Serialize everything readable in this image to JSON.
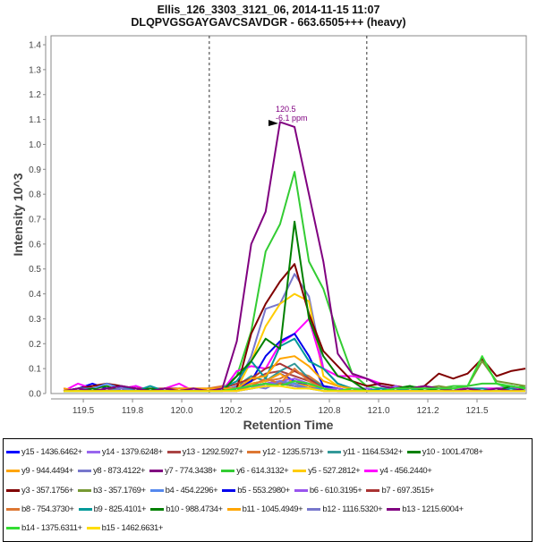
{
  "header": {
    "title_line1": "Ellis_126_3303_3121_06, 2014-11-15 11:07",
    "title_line2": "DLQPVGSGAYGAVCSAVDGR - 663.6505+++ (heavy)"
  },
  "chart_data": {
    "type": "line",
    "xlabel": "Retention Time",
    "ylabel": "Intensity 10^3",
    "xlim": [
      119.336,
      121.75
    ],
    "ylim": [
      0,
      1.436
    ],
    "x_ticks": [
      119.5,
      119.75,
      120.0,
      120.25,
      120.5,
      120.75,
      121.0,
      121.25,
      121.5
    ],
    "x_tick_labels": [
      "119.5",
      "119.8",
      "120.0",
      "120.2",
      "120.5",
      "120.8",
      "121.0",
      "121.2",
      "121.5"
    ],
    "y_ticks": [
      0,
      0.1,
      0.2,
      0.3,
      0.4,
      0.5,
      0.6,
      0.7,
      0.8,
      0.9,
      1.0,
      1.1,
      1.2,
      1.3,
      1.4
    ],
    "y_tick_labels": [
      "0.0",
      "0.1",
      "0.2",
      "0.3",
      "0.4",
      "0.5",
      "0.6",
      "0.7",
      "0.8",
      "0.9",
      "1.0",
      "1.1",
      "1.2",
      "1.3",
      "1.4"
    ],
    "integration_bounds": [
      120.14,
      120.94
    ],
    "annotation": {
      "x": 120.5,
      "y": 1.09,
      "line1": "120.5",
      "line2": "-6.1 ppm",
      "color": "#800080"
    },
    "x_start": 119.4,
    "x_step": 0.0733,
    "legend_position": "bottom",
    "series": [
      {
        "name": "y15 - 1436.6462+",
        "color": "#0000ff",
        "values": [
          0.01,
          0.02,
          0.04,
          0.02,
          0.01,
          0.03,
          0.01,
          0.01,
          0.02,
          0.01,
          0.01,
          0.01,
          0.02,
          0.04,
          0.05,
          0.08,
          0.05,
          0.03,
          0.02,
          0.01,
          0.01,
          0.02,
          0.01,
          0.01,
          0.01,
          0.01,
          0.01,
          0.01,
          0.01,
          0.01,
          0.01,
          0.01,
          0.01
        ]
      },
      {
        "name": "y14 - 1379.6248+",
        "color": "#9966ee",
        "values": [
          0.01,
          0.01,
          0.01,
          0.02,
          0.01,
          0.01,
          0.01,
          0.01,
          0.01,
          0.01,
          0.01,
          0.02,
          0.01,
          0.02,
          0.03,
          0.04,
          0.05,
          0.04,
          0.02,
          0.01,
          0.02,
          0.01,
          0.02,
          0.01,
          0.03,
          0.01,
          0.02,
          0.01,
          0.01,
          0.01,
          0.01,
          0.02,
          0.02
        ]
      },
      {
        "name": "y13 - 1292.5927+",
        "color": "#aa4444",
        "values": [
          0.01,
          0.01,
          0.02,
          0.01,
          0.02,
          0.02,
          0.01,
          0.02,
          0.01,
          0.01,
          0.01,
          0.01,
          0.03,
          0.05,
          0.08,
          0.09,
          0.07,
          0.05,
          0.03,
          0.01,
          0.01,
          0.01,
          0.01,
          0.01,
          0.01,
          0.01,
          0.01,
          0.01,
          0.01,
          0.01,
          0.01,
          0.01,
          0.01
        ]
      },
      {
        "name": "y12 - 1235.5713+",
        "color": "#dd7733",
        "values": [
          0.01,
          0.01,
          0.01,
          0.01,
          0.01,
          0.01,
          0.01,
          0.01,
          0.01,
          0.01,
          0.02,
          0.03,
          0.01,
          0.04,
          0.05,
          0.06,
          0.09,
          0.07,
          0.03,
          0.02,
          0.01,
          0.01,
          0.01,
          0.01,
          0.01,
          0.01,
          0.01,
          0.01,
          0.01,
          0.01,
          0.01,
          0.01,
          0.01
        ]
      },
      {
        "name": "y11 - 1164.5342+",
        "color": "#339999",
        "values": [
          0.01,
          0.02,
          0.01,
          0.01,
          0.01,
          0.02,
          0.01,
          0.01,
          0.01,
          0.01,
          0.01,
          0.01,
          0.03,
          0.07,
          0.05,
          0.09,
          0.12,
          0.06,
          0.03,
          0.02,
          0.01,
          0.01,
          0.01,
          0.01,
          0.01,
          0.01,
          0.01,
          0.01,
          0.01,
          0.01,
          0.01,
          0.01,
          0.01
        ]
      },
      {
        "name": "y10 - 1001.4708+",
        "color": "#008000",
        "values": [
          0.01,
          0.01,
          0.02,
          0.03,
          0.01,
          0.02,
          0.01,
          0.01,
          0.01,
          0.01,
          0.01,
          0.01,
          0.02,
          0.03,
          0.04,
          0.05,
          0.04,
          0.03,
          0.02,
          0.01,
          0.01,
          0.01,
          0.01,
          0.01,
          0.02,
          0.01,
          0.01,
          0.02,
          0.01,
          0.01,
          0.01,
          0.01,
          0.01
        ]
      },
      {
        "name": "y9 - 944.4494+",
        "color": "#ffa500",
        "values": [
          0.02,
          0.01,
          0.01,
          0.01,
          0.01,
          0.01,
          0.01,
          0.01,
          0.01,
          0.01,
          0.01,
          0.02,
          0.02,
          0.04,
          0.05,
          0.08,
          0.04,
          0.03,
          0.02,
          0.01,
          0.01,
          0.01,
          0.01,
          0.01,
          0.01,
          0.01,
          0.01,
          0.01,
          0.01,
          0.01,
          0.01,
          0.01,
          0.02
        ]
      },
      {
        "name": "y8 - 873.4122+",
        "color": "#7777cc",
        "values": [
          0.02,
          0.01,
          0.02,
          0.01,
          0.02,
          0.01,
          0.01,
          0.02,
          0.01,
          0.01,
          0.02,
          0.01,
          0.03,
          0.15,
          0.34,
          0.36,
          0.48,
          0.39,
          0.1,
          0.04,
          0.02,
          0.02,
          0.01,
          0.02,
          0.01,
          0.02,
          0.01,
          0.02,
          0.01,
          0.02,
          0.02,
          0.03,
          0.02
        ]
      },
      {
        "name": "y7 - 774.3438+",
        "color": "#800080",
        "values": [
          0.01,
          0.01,
          0.01,
          0.01,
          0.02,
          0.01,
          0.01,
          0.01,
          0.01,
          0.01,
          0.01,
          0.01,
          0.02,
          0.03,
          0.04,
          0.04,
          0.03,
          0.02,
          0.02,
          0.01,
          0.01,
          0.01,
          0.01,
          0.01,
          0.01,
          0.01,
          0.01,
          0.01,
          0.01,
          0.01,
          0.01,
          0.01,
          0.01
        ]
      },
      {
        "name": "y6 - 614.3132+",
        "color": "#33cc33",
        "values": [
          0.01,
          0.01,
          0.02,
          0.01,
          0.01,
          0.02,
          0.01,
          0.01,
          0.02,
          0.01,
          0.01,
          0.02,
          0.07,
          0.25,
          0.57,
          0.68,
          0.89,
          0.53,
          0.42,
          0.24,
          0.08,
          0.03,
          0.02,
          0.02,
          0.03,
          0.02,
          0.02,
          0.03,
          0.03,
          0.04,
          0.04,
          0.02,
          0.03
        ]
      },
      {
        "name": "y5 - 527.2812+",
        "color": "#ffcc00",
        "values": [
          0.01,
          0.01,
          0.01,
          0.01,
          0.01,
          0.01,
          0.01,
          0.01,
          0.01,
          0.01,
          0.01,
          0.01,
          0.02,
          0.13,
          0.27,
          0.36,
          0.4,
          0.37,
          0.07,
          0.03,
          0.02,
          0.01,
          0.01,
          0.01,
          0.01,
          0.01,
          0.01,
          0.01,
          0.01,
          0.01,
          0.01,
          0.01,
          0.01
        ]
      },
      {
        "name": "y4 - 456.2440+",
        "color": "#ff00ff",
        "values": [
          0.01,
          0.04,
          0.02,
          0.01,
          0.02,
          0.03,
          0.01,
          0.02,
          0.04,
          0.01,
          0.02,
          0.01,
          0.09,
          0.11,
          0.1,
          0.2,
          0.24,
          0.3,
          0.1,
          0.07,
          0.07,
          0.06,
          0.04,
          0.03,
          0.02,
          0.02,
          0.02,
          0.02,
          0.02,
          0.02,
          0.02,
          0.02,
          0.02
        ]
      },
      {
        "name": "y3 - 357.1756+",
        "color": "#800000",
        "values": [
          0.01,
          0.02,
          0.03,
          0.04,
          0.03,
          0.02,
          0.01,
          0.02,
          0.01,
          0.01,
          0.02,
          0.02,
          0.02,
          0.24,
          0.36,
          0.45,
          0.52,
          0.32,
          0.17,
          0.11,
          0.05,
          0.03,
          0.04,
          0.03,
          0.02,
          0.03,
          0.08,
          0.06,
          0.08,
          0.14,
          0.07,
          0.09,
          0.1
        ]
      },
      {
        "name": "b3 - 357.1769+",
        "color": "#779933",
        "values": [
          0.01,
          0.01,
          0.01,
          0.01,
          0.01,
          0.01,
          0.01,
          0.01,
          0.01,
          0.01,
          0.01,
          0.01,
          0.02,
          0.03,
          0.03,
          0.04,
          0.03,
          0.02,
          0.02,
          0.01,
          0.01,
          0.01,
          0.01,
          0.01,
          0.02,
          0.02,
          0.03,
          0.02,
          0.03,
          0.13,
          0.05,
          0.04,
          0.03
        ]
      },
      {
        "name": "b4 - 454.2296+",
        "color": "#5588ee",
        "values": [
          0.01,
          0.02,
          0.02,
          0.04,
          0.02,
          0.01,
          0.02,
          0.01,
          0.02,
          0.02,
          0.01,
          0.01,
          0.01,
          0.02,
          0.03,
          0.05,
          0.04,
          0.02,
          0.02,
          0.01,
          0.01,
          0.01,
          0.02,
          0.01,
          0.01,
          0.01,
          0.01,
          0.01,
          0.01,
          0.01,
          0.01,
          0.01,
          0.01
        ]
      },
      {
        "name": "b5 - 553.2980+",
        "color": "#0000ee",
        "values": [
          0.01,
          0.01,
          0.01,
          0.01,
          0.02,
          0.01,
          0.01,
          0.01,
          0.01,
          0.01,
          0.01,
          0.01,
          0.02,
          0.05,
          0.15,
          0.21,
          0.24,
          0.15,
          0.03,
          0.02,
          0.01,
          0.02,
          0.01,
          0.01,
          0.01,
          0.01,
          0.01,
          0.01,
          0.01,
          0.01,
          0.01,
          0.01,
          0.01
        ]
      },
      {
        "name": "b6 - 610.3195+",
        "color": "#9955ee",
        "values": [
          0.01,
          0.01,
          0.01,
          0.01,
          0.01,
          0.01,
          0.01,
          0.01,
          0.01,
          0.01,
          0.01,
          0.01,
          0.01,
          0.02,
          0.04,
          0.05,
          0.06,
          0.04,
          0.02,
          0.02,
          0.01,
          0.02,
          0.01,
          0.03,
          0.01,
          0.01,
          0.01,
          0.01,
          0.01,
          0.01,
          0.01,
          0.01,
          0.01
        ]
      },
      {
        "name": "b7 - 697.3515+",
        "color": "#aa3333",
        "values": [
          0.01,
          0.01,
          0.01,
          0.02,
          0.01,
          0.02,
          0.02,
          0.02,
          0.02,
          0.02,
          0.02,
          0.02,
          0.04,
          0.06,
          0.1,
          0.12,
          0.09,
          0.06,
          0.02,
          0.01,
          0.01,
          0.01,
          0.01,
          0.01,
          0.01,
          0.01,
          0.01,
          0.01,
          0.01,
          0.01,
          0.01,
          0.01,
          0.01
        ]
      },
      {
        "name": "b8 - 754.3730+",
        "color": "#dd7733",
        "values": [
          0.01,
          0.01,
          0.01,
          0.01,
          0.01,
          0.01,
          0.01,
          0.01,
          0.01,
          0.01,
          0.02,
          0.02,
          0.01,
          0.03,
          0.06,
          0.04,
          0.1,
          0.05,
          0.02,
          0.01,
          0.01,
          0.01,
          0.01,
          0.01,
          0.01,
          0.01,
          0.01,
          0.01,
          0.01,
          0.01,
          0.01,
          0.01,
          0.01
        ]
      },
      {
        "name": "b9 - 825.4101+",
        "color": "#009999",
        "values": [
          0.01,
          0.02,
          0.01,
          0.02,
          0.03,
          0.01,
          0.03,
          0.01,
          0.01,
          0.01,
          0.01,
          0.02,
          0.05,
          0.13,
          0.06,
          0.19,
          0.22,
          0.13,
          0.1,
          0.04,
          0.02,
          0.01,
          0.02,
          0.01,
          0.02,
          0.01,
          0.01,
          0.01,
          0.02,
          0.02,
          0.01,
          0.02,
          0.01
        ]
      },
      {
        "name": "b10 - 988.4734+",
        "color": "#008000",
        "values": [
          0.01,
          0.01,
          0.02,
          0.01,
          0.01,
          0.01,
          0.02,
          0.01,
          0.01,
          0.01,
          0.01,
          0.01,
          0.07,
          0.13,
          0.22,
          0.18,
          0.69,
          0.3,
          0.15,
          0.07,
          0.05,
          0.01,
          0.01,
          0.02,
          0.03,
          0.01,
          0.02,
          0.01,
          0.02,
          0.01,
          0.01,
          0.03,
          0.02
        ]
      },
      {
        "name": "b11 - 1045.4949+",
        "color": "#ffa500",
        "values": [
          0.02,
          0.01,
          0.01,
          0.01,
          0.01,
          0.01,
          0.01,
          0.01,
          0.02,
          0.02,
          0.02,
          0.02,
          0.02,
          0.06,
          0.07,
          0.14,
          0.15,
          0.11,
          0.05,
          0.03,
          0.02,
          0.01,
          0.01,
          0.01,
          0.01,
          0.01,
          0.01,
          0.01,
          0.01,
          0.01,
          0.01,
          0.01,
          0.02
        ]
      },
      {
        "name": "b12 - 1116.5320+",
        "color": "#7777cc",
        "values": [
          0.01,
          0.01,
          0.01,
          0.01,
          0.02,
          0.01,
          0.01,
          0.01,
          0.01,
          0.01,
          0.01,
          0.01,
          0.02,
          0.03,
          0.02,
          0.05,
          0.03,
          0.02,
          0.01,
          0.01,
          0.01,
          0.01,
          0.01,
          0.01,
          0.01,
          0.01,
          0.01,
          0.01,
          0.01,
          0.01,
          0.01,
          0.01,
          0.01
        ]
      },
      {
        "name": "b13 - 1215.6004+",
        "color": "#800080",
        "values": [
          0.01,
          0.02,
          0.01,
          0.02,
          0.03,
          0.02,
          0.01,
          0.02,
          0.01,
          0.02,
          0.01,
          0.02,
          0.21,
          0.6,
          0.73,
          1.09,
          1.07,
          0.8,
          0.53,
          0.16,
          0.08,
          0.06,
          0.03,
          0.02,
          0.02,
          0.03,
          0.02,
          0.01,
          0.02,
          0.01,
          0.02,
          0.01,
          0.02
        ]
      },
      {
        "name": "b14 - 1375.6311+",
        "color": "#33dd33",
        "values": [
          0.01,
          0.01,
          0.01,
          0.01,
          0.01,
          0.01,
          0.01,
          0.01,
          0.01,
          0.01,
          0.01,
          0.01,
          0.02,
          0.03,
          0.04,
          0.03,
          0.05,
          0.04,
          0.02,
          0.01,
          0.02,
          0.01,
          0.01,
          0.02,
          0.02,
          0.02,
          0.02,
          0.02,
          0.03,
          0.15,
          0.04,
          0.03,
          0.02
        ]
      },
      {
        "name": "b15 - 1462.6631+",
        "color": "#ffdd00",
        "values": [
          0.01,
          0.01,
          0.01,
          0.01,
          0.01,
          0.01,
          0.01,
          0.01,
          0.01,
          0.01,
          0.01,
          0.01,
          0.01,
          0.02,
          0.03,
          0.03,
          0.02,
          0.02,
          0.01,
          0.01,
          0.01,
          0.01,
          0.01,
          0.01,
          0.01,
          0.01,
          0.01,
          0.01,
          0.01,
          0.01,
          0.01,
          0.01,
          0.01
        ]
      }
    ]
  }
}
